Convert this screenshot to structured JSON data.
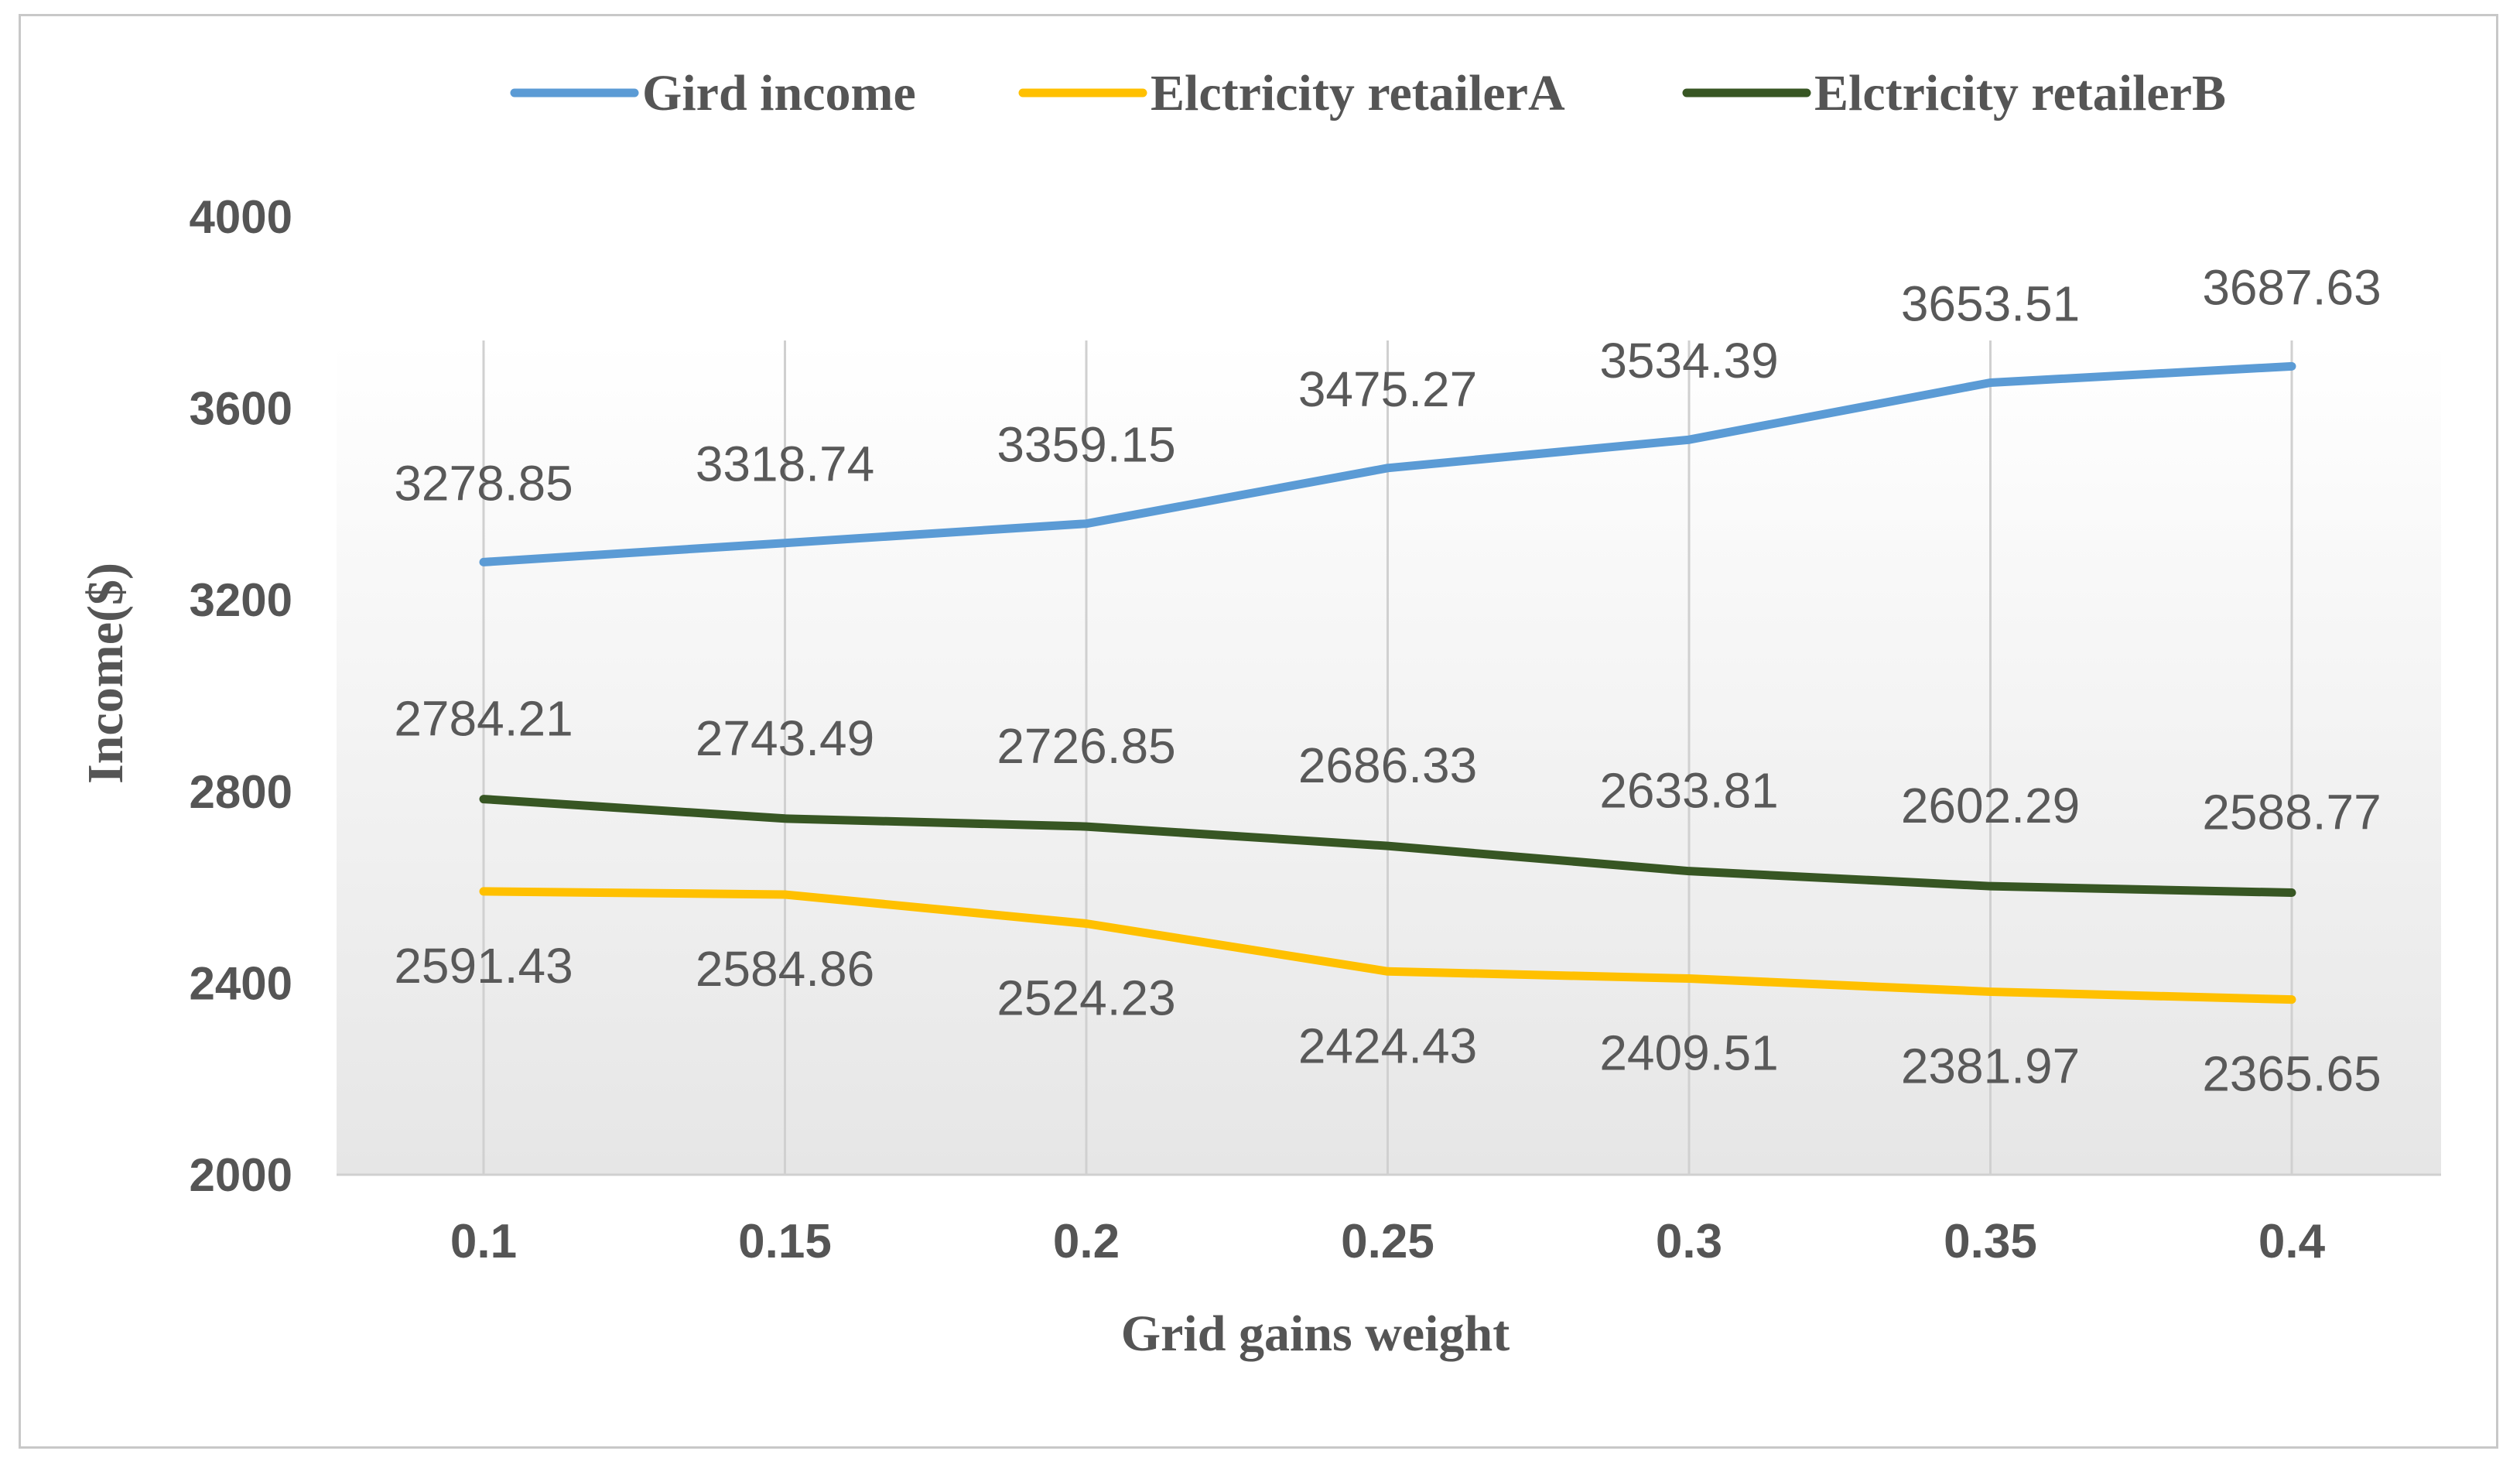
{
  "chart_data": {
    "type": "line",
    "xlabel": "Grid gains weight",
    "ylabel": "Income($)",
    "ylim": [
      2000,
      4000
    ],
    "yticks": [
      2000,
      2400,
      2800,
      3200,
      3600,
      4000
    ],
    "categories": [
      "0.1",
      "0.15",
      "0.2",
      "0.25",
      "0.3",
      "0.35",
      "0.4"
    ],
    "grid": "vertical",
    "legend_position": "top",
    "series": [
      {
        "name": "Gird income",
        "color": "#5b9bd5",
        "values": [
          3278.85,
          3318.74,
          3359.15,
          3475.27,
          3534.39,
          3653.51,
          3687.63
        ],
        "labels": [
          "3278.85",
          "3318.74",
          "3359.15",
          "3475.27",
          "3534.39",
          "3653.51",
          "3687.63"
        ]
      },
      {
        "name": "Elctricity retailerA",
        "color": "#ffc000",
        "values": [
          2591.43,
          2584.86,
          2524.23,
          2424.43,
          2409.51,
          2381.97,
          2365.65
        ],
        "labels": [
          "2591.43",
          "2584.86",
          "2524.23",
          "2424.43",
          "2409.51",
          "2381.97",
          "2365.65"
        ]
      },
      {
        "name": "Elctricity retailerB",
        "color": "#375623",
        "values": [
          2784.21,
          2743.49,
          2726.85,
          2686.33,
          2633.81,
          2602.29,
          2588.77
        ],
        "labels": [
          "2784.21",
          "2743.49",
          "2726.85",
          "2686.33",
          "2633.81",
          "2602.29",
          "2588.77"
        ]
      }
    ]
  }
}
